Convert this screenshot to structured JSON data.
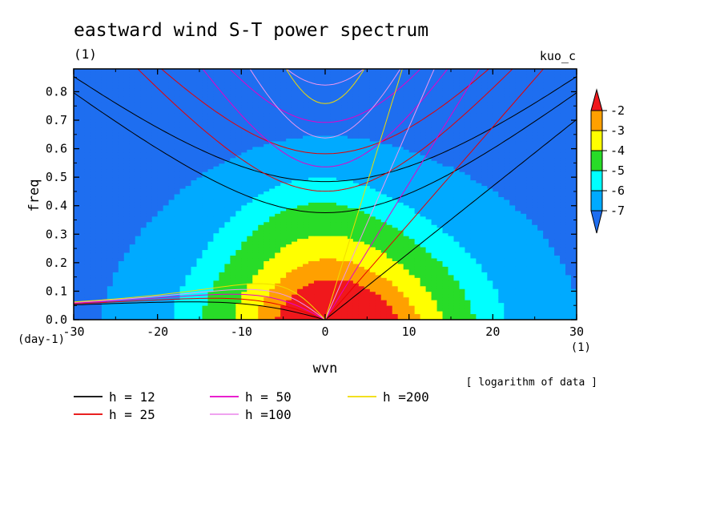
{
  "chart_data": {
    "type": "heatmap",
    "title": "eastward wind S-T power spectrum",
    "subtitle_left": "(1)",
    "subtitle_right": "kuo_c",
    "xlabel": "wvn",
    "ylabel": "freq",
    "x_unit": "(1)",
    "y_unit": "(day-1)",
    "xlim": [
      -30,
      30
    ],
    "ylim": [
      0,
      0.88
    ],
    "x_ticks": [
      -30,
      -20,
      -10,
      0,
      10,
      20,
      30
    ],
    "y_ticks": [
      0.0,
      0.1,
      0.2,
      0.3,
      0.4,
      0.5,
      0.6,
      0.7,
      0.8
    ],
    "colorbar": {
      "levels": [
        -2,
        -3,
        -4,
        -5,
        -6,
        -7
      ],
      "colors": [
        "#f0181c",
        "#ffa000",
        "#ffff00",
        "#28dc28",
        "#00ffff",
        "#00aaff",
        "#1e6ef0"
      ],
      "note": "[ logarithm of data ]"
    },
    "dispersion_curves": [
      {
        "name": "h = 12",
        "h": 12,
        "color": "#000000"
      },
      {
        "name": "h = 25",
        "h": 25,
        "color": "#e60000"
      },
      {
        "name": "h = 50",
        "h": 50,
        "color": "#e600c8"
      },
      {
        "name": "h =100",
        "h": 100,
        "color": "#ee96ee"
      },
      {
        "name": "h =200",
        "h": 200,
        "color": "#f0dc00"
      }
    ]
  }
}
